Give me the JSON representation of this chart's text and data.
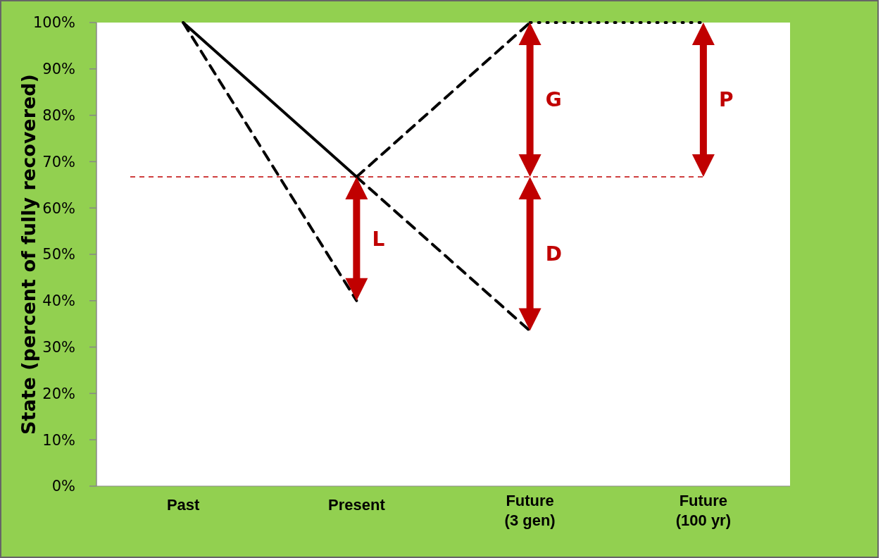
{
  "chart_data": {
    "type": "line",
    "ylabel": "State (percent of fully recovered)",
    "categories": [
      "Past",
      "Present",
      "Future\n(3 gen)",
      "Future\n(100 yr)"
    ],
    "series": [
      {
        "color": "#000000",
        "line_style": "solid",
        "values": [
          100,
          66.7,
          null,
          null
        ]
      },
      {
        "color": "#000000",
        "line_style": "dashed",
        "values": [
          100,
          40,
          null,
          null
        ]
      },
      {
        "color": "#000000",
        "line_style": "dashed",
        "values": [
          null,
          66.7,
          100,
          null
        ]
      },
      {
        "color": "#000000",
        "line_style": "dashed",
        "values": [
          null,
          66.7,
          33.5,
          null
        ]
      },
      {
        "color": "#000000",
        "line_style": "dotted",
        "values": [
          null,
          null,
          100,
          100
        ]
      }
    ],
    "ylim": [
      0,
      100
    ],
    "yticks": [
      {
        "value": 0,
        "label": "0%"
      },
      {
        "value": 10,
        "label": "10%"
      },
      {
        "value": 20,
        "label": "20%"
      },
      {
        "value": 30,
        "label": "30%"
      },
      {
        "value": 40,
        "label": "40%"
      },
      {
        "value": 50,
        "label": "50%"
      },
      {
        "value": 60,
        "label": "60%"
      },
      {
        "value": 70,
        "label": "70%"
      },
      {
        "value": 80,
        "label": "80%"
      },
      {
        "value": 90,
        "label": "90%"
      },
      {
        "value": 100,
        "label": "100%"
      }
    ],
    "ref_lines": [
      {
        "axis": "y",
        "value": 66.7,
        "color": "#c00000",
        "line_style": "dashed"
      }
    ],
    "annotations": [
      "L",
      "G",
      "D",
      "P"
    ],
    "grid": false,
    "marker": "none"
  }
}
